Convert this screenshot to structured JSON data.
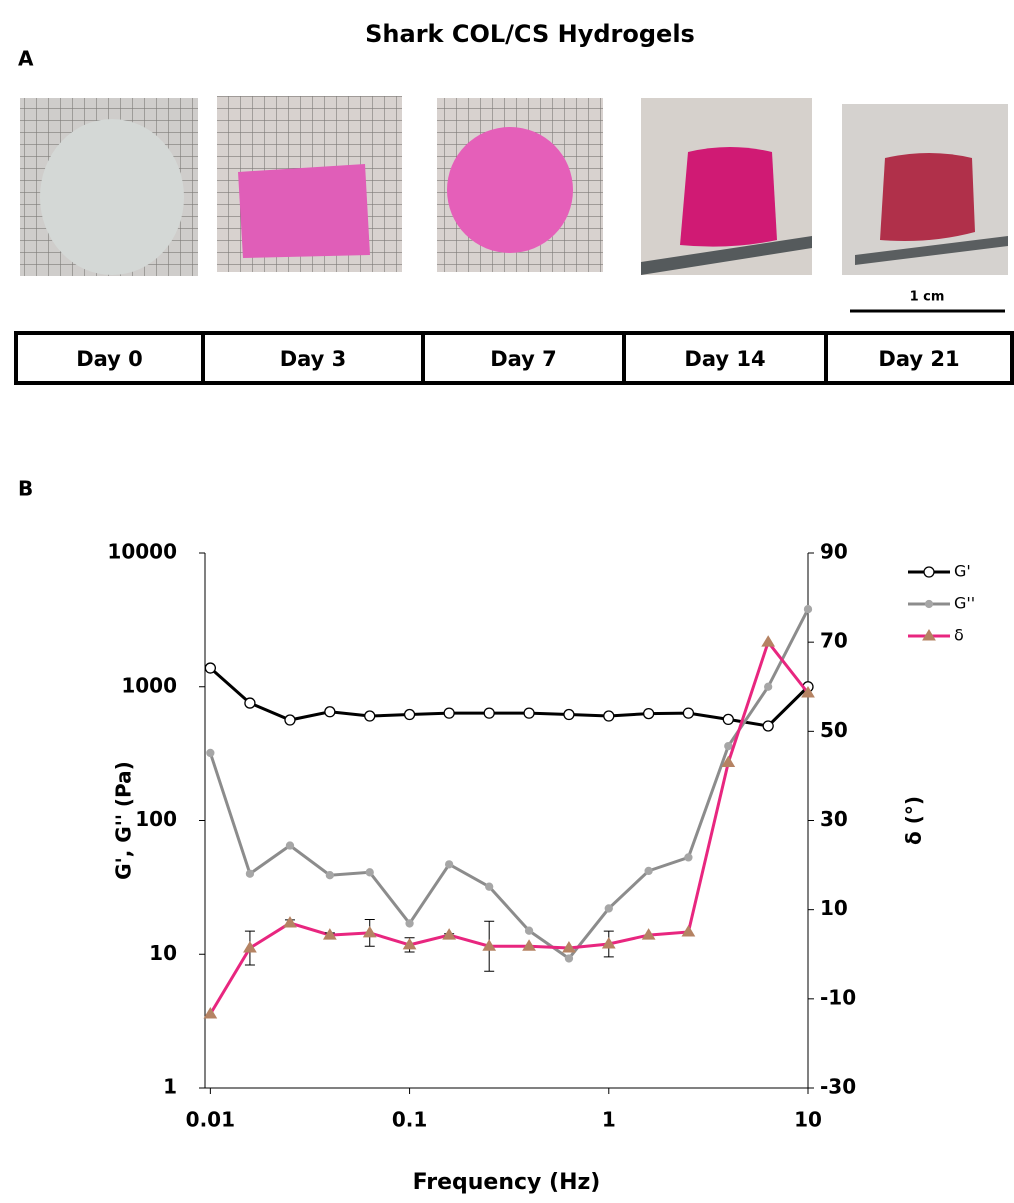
{
  "panel_a": {
    "label": "A",
    "title": "Shark COL/CS Hydrogels",
    "scale_bar": "1 cm",
    "days": [
      "Day 0",
      "Day 3",
      "Day 7",
      "Day 14",
      "Day 21"
    ]
  },
  "panel_b_label": "B",
  "chart_data": {
    "type": "line",
    "xlabel": "Frequency (Hz)",
    "ylabel": "G', G'' (Pa)",
    "y2label": "δ (°)",
    "xscale": "log",
    "yscale": "log",
    "x": [
      0.01,
      0.0158,
      0.0251,
      0.0398,
      0.0631,
      0.1,
      0.158,
      0.251,
      0.398,
      0.631,
      1,
      1.585,
      2.51,
      3.98,
      6.31,
      10
    ],
    "xlim": [
      0.0094,
      10
    ],
    "xticks": [
      0.01,
      0.1,
      1,
      10
    ],
    "ylim": [
      1,
      10000
    ],
    "yticks": [
      1,
      10,
      100,
      1000,
      10000
    ],
    "y2lim": [
      -30,
      90
    ],
    "y2ticks": [
      -30,
      -10,
      10,
      30,
      50,
      70,
      90
    ],
    "legend": "right",
    "series": [
      {
        "name": "G'",
        "color": "#000000",
        "marker": "circle",
        "marker_color": "#ffffff",
        "values": [
          1380,
          755,
          564,
          650,
          604,
          620,
          635,
          635,
          635,
          620,
          604,
          630,
          635,
          570,
          509,
          1000
        ]
      },
      {
        "name": "G''",
        "color": "#8c8c8c",
        "marker": "dot",
        "marker_color": "#a6a6a6",
        "values": [
          320,
          40,
          65,
          39,
          41,
          17,
          47,
          32,
          15,
          9.3,
          22,
          42,
          53,
          360,
          1000,
          3800
        ]
      },
      {
        "name": "δ",
        "color": "#e8267f",
        "marker": "triangle",
        "marker_color": "#b58363",
        "axis": "y2",
        "values": [
          -13.4,
          1.4,
          7,
          4.3,
          4.8,
          2.1,
          4.3,
          1.8,
          1.8,
          1.4,
          2.3,
          4.3,
          5,
          43,
          70,
          58.6
        ],
        "errors": [
          null,
          3.8,
          0.7,
          0.5,
          3,
          1.6,
          0.3,
          5.6,
          null,
          null,
          2.9,
          null,
          null,
          null,
          null,
          null
        ]
      }
    ]
  }
}
